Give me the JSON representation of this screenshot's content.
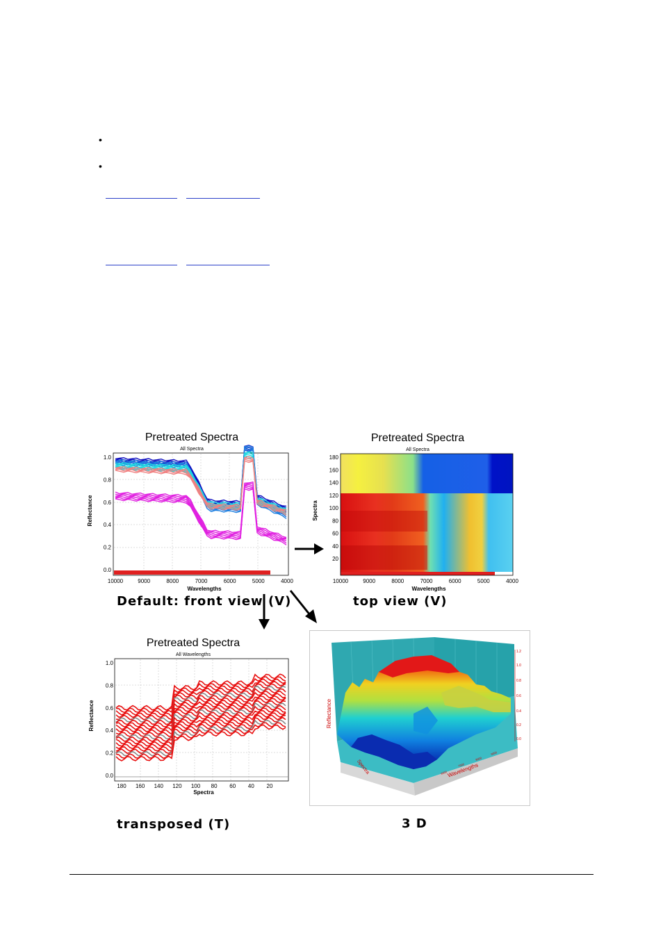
{
  "charts": {
    "front": {
      "title": "Pretreated Spectra",
      "subtitle": "All Spectra",
      "xlabel": "Wavelengths",
      "ylabel": "Reflectance",
      "xticks": [
        "10000",
        "9000",
        "8000",
        "7000",
        "6000",
        "5000",
        "4000"
      ],
      "yticks": [
        "1.0",
        "0.8",
        "0.6",
        "0.4",
        "0.2",
        "0.0"
      ]
    },
    "top": {
      "title": "Pretreated Spectra",
      "subtitle": "All Spectra",
      "xlabel": "Wavelengths",
      "ylabel": "Spectra",
      "xticks": [
        "10000",
        "9000",
        "8000",
        "7000",
        "6000",
        "5000",
        "4000"
      ],
      "yticks": [
        "180",
        "160",
        "140",
        "120",
        "100",
        "80",
        "60",
        "40",
        "20"
      ]
    },
    "transposed": {
      "title": "Pretreated Spectra",
      "subtitle": "All Wavelengths",
      "xlabel": "Spectra",
      "ylabel": "Reflectance",
      "xticks": [
        "180",
        "160",
        "140",
        "120",
        "100",
        "80",
        "60",
        "40",
        "20"
      ],
      "yticks": [
        "1.0",
        "0.8",
        "0.6",
        "0.4",
        "0.2",
        "0.0"
      ]
    },
    "threed": {
      "zlabel": "Reflectance",
      "xlabel": "Wavelengths",
      "ylabel": "Spectra"
    }
  },
  "captions": {
    "front": "Default: front view (V)",
    "top": "top view (V)",
    "transposed": "transposed (T)",
    "threed": "3 D"
  }
}
